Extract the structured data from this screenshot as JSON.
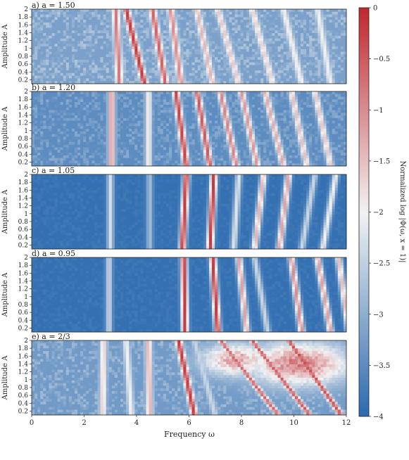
{
  "chart_data": {
    "type": "heatmap",
    "xlabel": "Frequency ω",
    "ylabel": "Amplitude A",
    "xlim": [
      0,
      12
    ],
    "ylim": [
      0.1,
      2.0
    ],
    "x_ticks": [
      "0",
      "2",
      "4",
      "6",
      "8",
      "10",
      "12"
    ],
    "y_ticks": [
      "0.2",
      "0.4",
      "0.6",
      "0.8",
      "1",
      "1.2",
      "1.4",
      "1.6",
      "1.8",
      "2"
    ],
    "colorbar": {
      "label": "Normalized log |Φ(ω, x = 1)|",
      "range": [
        -4,
        0
      ],
      "ticks": [
        "0",
        "−0.5",
        "−1",
        "−1.5",
        "−2",
        "−2.5",
        "−3",
        "−3.5",
        "−4"
      ],
      "colors": {
        "low": "#2b6aaf",
        "mid": "#f2f2f2",
        "high": "#c0262e"
      }
    },
    "panels": [
      {
        "label": "a) a = 1.50",
        "background": -3.2,
        "noise": 1.1,
        "ridges": [
          {
            "x_bottom": 3.35,
            "x_top": 3.2,
            "value": -0.8
          },
          {
            "x_bottom": 4.3,
            "x_top": 3.6,
            "value": -0.2
          },
          {
            "x_bottom": 5.1,
            "x_top": 4.6,
            "value": -0.6
          },
          {
            "x_bottom": 5.7,
            "x_top": 5.3,
            "value": -1.0
          },
          {
            "x_bottom": 6.9,
            "x_top": 6.3,
            "value": -1.4
          },
          {
            "x_bottom": 7.9,
            "x_top": 7.1,
            "value": -1.6
          },
          {
            "x_bottom": 9.2,
            "x_top": 8.4,
            "value": -1.7
          },
          {
            "x_bottom": 10.3,
            "x_top": 9.6,
            "value": -1.9
          },
          {
            "x_bottom": 11.4,
            "x_top": 10.9,
            "value": -2.0
          }
        ]
      },
      {
        "label": "b) a = 1.20",
        "background": -3.5,
        "noise": 0.9,
        "ridges": [
          {
            "x_bottom": 3.05,
            "x_top": 3.05,
            "value": -1.0
          },
          {
            "x_bottom": 4.45,
            "x_top": 4.45,
            "value": -1.8
          },
          {
            "x_bottom": 5.9,
            "x_top": 5.5,
            "value": -0.3
          },
          {
            "x_bottom": 6.8,
            "x_top": 6.3,
            "value": -0.5
          },
          {
            "x_bottom": 7.8,
            "x_top": 7.2,
            "value": -0.9
          },
          {
            "x_bottom": 8.6,
            "x_top": 8.0,
            "value": -1.1
          },
          {
            "x_bottom": 9.6,
            "x_top": 8.9,
            "value": -1.3
          },
          {
            "x_bottom": 10.5,
            "x_top": 9.9,
            "value": -1.5
          },
          {
            "x_bottom": 11.4,
            "x_top": 10.8,
            "value": -1.6
          }
        ]
      },
      {
        "label": "c) a = 1.05",
        "background": -3.9,
        "noise": 0.25,
        "ridges": [
          {
            "x_bottom": 3.0,
            "x_top": 3.0,
            "value": -2.3
          },
          {
            "x_bottom": 4.5,
            "x_top": 4.5,
            "value": -2.8
          },
          {
            "x_bottom": 5.75,
            "x_top": 5.9,
            "value": -0.2
          },
          {
            "x_bottom": 6.8,
            "x_top": 6.95,
            "value": -0.2
          },
          {
            "x_bottom": 7.7,
            "x_top": 7.9,
            "value": -2.2
          },
          {
            "x_bottom": 8.5,
            "x_top": 8.85,
            "value": -1.4
          },
          {
            "x_bottom": 9.45,
            "x_top": 9.8,
            "value": -1.2
          },
          {
            "x_bottom": 10.3,
            "x_top": 10.8,
            "value": -2.4
          },
          {
            "x_bottom": 11.1,
            "x_top": 11.6,
            "value": -2.0
          }
        ]
      },
      {
        "label": "d) a = 0.95",
        "background": -3.9,
        "noise": 0.25,
        "ridges": [
          {
            "x_bottom": 2.95,
            "x_top": 2.95,
            "value": -2.4
          },
          {
            "x_bottom": 5.85,
            "x_top": 5.8,
            "value": -0.2
          },
          {
            "x_bottom": 7.1,
            "x_top": 6.9,
            "value": -0.2
          },
          {
            "x_bottom": 8.2,
            "x_top": 7.9,
            "value": -1.2
          },
          {
            "x_bottom": 9.0,
            "x_top": 8.5,
            "value": -2.4
          },
          {
            "x_bottom": 10.3,
            "x_top": 9.9,
            "value": -1.0
          },
          {
            "x_bottom": 11.4,
            "x_top": 10.9,
            "value": -1.2
          },
          {
            "x_bottom": 12.1,
            "x_top": 11.7,
            "value": -1.5
          }
        ]
      },
      {
        "label": "e) a = 2/3",
        "background": -3.3,
        "noise": 1.0,
        "ridges": [
          {
            "x_bottom": 2.7,
            "x_top": 2.75,
            "value": -1.6
          },
          {
            "x_bottom": 3.8,
            "x_top": 3.6,
            "value": -2.0
          },
          {
            "x_bottom": 4.5,
            "x_top": 4.45,
            "value": -1.3
          },
          {
            "x_bottom": 6.2,
            "x_top": 5.6,
            "value": -0.2
          },
          {
            "x_bottom": 7.0,
            "x_top": 6.2,
            "value": -2.4
          },
          {
            "x_bottom": 9.4,
            "x_top": 7.2,
            "value": -0.6
          },
          {
            "x_bottom": 10.6,
            "x_top": 8.4,
            "value": -0.5
          },
          {
            "x_bottom": 11.8,
            "x_top": 9.8,
            "value": -0.4
          }
        ],
        "blobs": [
          {
            "x": 10.2,
            "y": 1.4,
            "rx": 2.3,
            "ry": 0.65,
            "value": -0.9
          },
          {
            "x": 7.8,
            "y": 1.5,
            "rx": 1.6,
            "ry": 0.5,
            "value": -1.3
          }
        ]
      }
    ]
  }
}
